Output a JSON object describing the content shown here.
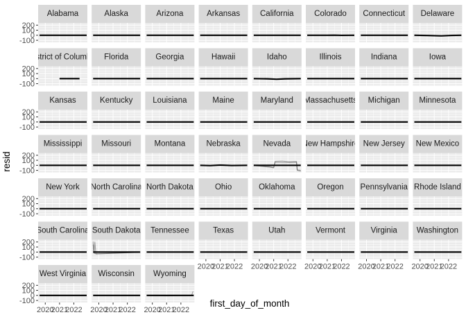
{
  "chart_data": {
    "type": "line",
    "layout": "facet_wrap",
    "ncol": 8,
    "xlabel": "first_day_of_month",
    "ylabel": "resid",
    "x_ticks": [
      "2020",
      "2021",
      "2022"
    ],
    "x_range": [
      2019.5,
      2022.95
    ],
    "y_ticks": [
      200,
      100,
      0,
      -100
    ],
    "y_range": [
      -140,
      245
    ],
    "grid": true,
    "colors": {
      "panel_background": "#ebebeb",
      "strip_background": "#d9d9d9",
      "grid": "#ffffff",
      "line": "#000000"
    },
    "series_note": "many overlapping lines per panel, mostly flat at resid = 0",
    "panels": [
      {
        "name": "Alabama",
        "series": [
          [
            [
              2019.6,
              0
            ],
            [
              2022.9,
              0
            ]
          ]
        ]
      },
      {
        "name": "Alaska",
        "series": [
          [
            [
              2019.6,
              0
            ],
            [
              2022.9,
              0
            ]
          ]
        ]
      },
      {
        "name": "Arizona",
        "series": [
          [
            [
              2019.6,
              0
            ],
            [
              2022.9,
              0
            ]
          ]
        ]
      },
      {
        "name": "Arkansas",
        "series": [
          [
            [
              2019.6,
              0
            ],
            [
              2022.9,
              0
            ]
          ]
        ]
      },
      {
        "name": "California",
        "series": [
          [
            [
              2019.6,
              0
            ],
            [
              2022.9,
              0
            ]
          ]
        ]
      },
      {
        "name": "Colorado",
        "series": [
          [
            [
              2019.6,
              0
            ],
            [
              2021.0,
              0
            ],
            [
              2021.5,
              2
            ],
            [
              2022.0,
              -2
            ],
            [
              2022.9,
              0
            ]
          ]
        ]
      },
      {
        "name": "Connecticut",
        "series": [
          [
            [
              2019.6,
              0
            ],
            [
              2022.9,
              0
            ]
          ]
        ]
      },
      {
        "name": "Delaware",
        "series": [
          [
            [
              2019.6,
              0
            ],
            [
              2020.6,
              -5
            ],
            [
              2021.5,
              -12
            ],
            [
              2022.2,
              -3
            ],
            [
              2022.9,
              0
            ]
          ]
        ]
      },
      {
        "name": "District of Columbia",
        "series": [
          [
            [
              2021.0,
              0
            ],
            [
              2022.4,
              0
            ]
          ]
        ]
      },
      {
        "name": "Florida",
        "series": [
          [
            [
              2019.6,
              0
            ],
            [
              2022.9,
              0
            ]
          ]
        ]
      },
      {
        "name": "Georgia",
        "series": [
          [
            [
              2019.6,
              0
            ],
            [
              2022.9,
              0
            ]
          ]
        ]
      },
      {
        "name": "Hawaii",
        "series": [
          [
            [
              2019.6,
              0
            ],
            [
              2022.9,
              0
            ]
          ]
        ]
      },
      {
        "name": "Idaho",
        "series": [
          [
            [
              2019.6,
              0
            ],
            [
              2020.6,
              -4
            ],
            [
              2021.2,
              -12
            ],
            [
              2021.8,
              -4
            ],
            [
              2022.9,
              0
            ]
          ]
        ]
      },
      {
        "name": "Illinois",
        "series": [
          [
            [
              2019.6,
              0
            ],
            [
              2022.9,
              0
            ]
          ]
        ]
      },
      {
        "name": "Indiana",
        "series": [
          [
            [
              2019.6,
              0
            ],
            [
              2022.9,
              0
            ]
          ]
        ]
      },
      {
        "name": "Iowa",
        "series": [
          [
            [
              2019.6,
              0
            ],
            [
              2022.9,
              0
            ]
          ]
        ]
      },
      {
        "name": "Kansas",
        "series": [
          [
            [
              2019.6,
              0
            ],
            [
              2022.9,
              0
            ]
          ]
        ]
      },
      {
        "name": "Kentucky",
        "series": [
          [
            [
              2019.6,
              0
            ],
            [
              2022.9,
              0
            ]
          ]
        ]
      },
      {
        "name": "Louisiana",
        "series": [
          [
            [
              2019.6,
              0
            ],
            [
              2022.9,
              0
            ]
          ]
        ]
      },
      {
        "name": "Maine",
        "series": [
          [
            [
              2019.6,
              0
            ],
            [
              2022.9,
              0
            ]
          ]
        ]
      },
      {
        "name": "Maryland",
        "series": [
          [
            [
              2019.6,
              0
            ],
            [
              2022.9,
              0
            ]
          ]
        ]
      },
      {
        "name": "Massachusetts",
        "series": [
          [
            [
              2019.6,
              0
            ],
            [
              2022.9,
              0
            ]
          ]
        ]
      },
      {
        "name": "Michigan",
        "series": [
          [
            [
              2019.6,
              0
            ],
            [
              2022.9,
              0
            ]
          ]
        ]
      },
      {
        "name": "Minnesota",
        "series": [
          [
            [
              2019.6,
              0
            ],
            [
              2022.9,
              0
            ]
          ]
        ]
      },
      {
        "name": "Mississippi",
        "series": [
          [
            [
              2019.6,
              0
            ],
            [
              2022.9,
              0
            ]
          ]
        ]
      },
      {
        "name": "Missouri",
        "series": [
          [
            [
              2019.6,
              0
            ],
            [
              2022.9,
              0
            ]
          ]
        ]
      },
      {
        "name": "Montana",
        "series": [
          [
            [
              2019.6,
              0
            ],
            [
              2022.9,
              0
            ]
          ]
        ]
      },
      {
        "name": "Nebraska",
        "series": [
          [
            [
              2019.6,
              0
            ],
            [
              2020.3,
              -5
            ],
            [
              2021.0,
              5
            ],
            [
              2021.8,
              -3
            ],
            [
              2022.9,
              0
            ]
          ]
        ]
      },
      {
        "name": "Nevada",
        "series": [
          [
            [
              2019.6,
              0
            ],
            [
              2022.9,
              0
            ]
          ],
          [
            [
              2019.6,
              -5
            ],
            [
              2020.7,
              -35
            ],
            [
              2021.0,
              -50
            ],
            [
              2021.1,
              80
            ],
            [
              2021.6,
              85
            ],
            [
              2022.1,
              70
            ],
            [
              2022.6,
              75
            ],
            [
              2022.65,
              -100
            ],
            [
              2022.9,
              -115
            ]
          ],
          [
            [
              2019.6,
              0
            ],
            [
              2020.7,
              -25
            ],
            [
              2021.0,
              -40
            ],
            [
              2021.1,
              60
            ],
            [
              2022.1,
              55
            ],
            [
              2022.6,
              60
            ],
            [
              2022.65,
              -90
            ],
            [
              2022.9,
              -100
            ]
          ]
        ]
      },
      {
        "name": "New Hampshire",
        "series": [
          [
            [
              2019.6,
              0
            ],
            [
              2022.9,
              0
            ]
          ]
        ]
      },
      {
        "name": "New Jersey",
        "series": [
          [
            [
              2019.6,
              0
            ],
            [
              2022.9,
              0
            ]
          ]
        ]
      },
      {
        "name": "New Mexico",
        "series": [
          [
            [
              2019.6,
              0
            ],
            [
              2022.9,
              0
            ]
          ]
        ]
      },
      {
        "name": "New York",
        "series": [
          [
            [
              2019.6,
              0
            ],
            [
              2022.9,
              0
            ]
          ]
        ]
      },
      {
        "name": "North Carolina",
        "series": [
          [
            [
              2019.6,
              0
            ],
            [
              2022.9,
              0
            ]
          ]
        ]
      },
      {
        "name": "North Dakota",
        "series": [
          [
            [
              2019.6,
              0
            ],
            [
              2022.9,
              0
            ]
          ]
        ]
      },
      {
        "name": "Ohio",
        "series": [
          [
            [
              2019.6,
              0
            ],
            [
              2022.9,
              0
            ]
          ]
        ]
      },
      {
        "name": "Oklahoma",
        "series": [
          [
            [
              2019.6,
              0
            ],
            [
              2022.9,
              0
            ]
          ]
        ]
      },
      {
        "name": "Oregon",
        "series": [
          [
            [
              2019.6,
              0
            ],
            [
              2022.9,
              0
            ]
          ]
        ]
      },
      {
        "name": "Pennsylvania",
        "series": [
          [
            [
              2019.6,
              0
            ],
            [
              2022.9,
              0
            ]
          ]
        ]
      },
      {
        "name": "Rhode Island",
        "series": [
          [
            [
              2019.6,
              0
            ],
            [
              2022.9,
              0
            ]
          ]
        ]
      },
      {
        "name": "South Carolina",
        "series": [
          [
            [
              2019.6,
              0
            ],
            [
              2022.9,
              0
            ]
          ]
        ]
      },
      {
        "name": "South Dakota",
        "series": [
          [
            [
              2019.6,
              0
            ],
            [
              2022.9,
              0
            ]
          ],
          [
            [
              2019.6,
              210
            ],
            [
              2019.65,
              -20
            ],
            [
              2019.72,
              200
            ],
            [
              2019.8,
              -40
            ],
            [
              2020.6,
              -30
            ],
            [
              2021.4,
              -20
            ],
            [
              2022.3,
              -10
            ],
            [
              2022.9,
              -8
            ]
          ],
          [
            [
              2019.6,
              150
            ],
            [
              2019.7,
              -30
            ],
            [
              2020.5,
              -25
            ],
            [
              2022.9,
              -5
            ]
          ]
        ]
      },
      {
        "name": "Tennessee",
        "series": [
          [
            [
              2019.6,
              0
            ],
            [
              2022.9,
              0
            ]
          ]
        ]
      },
      {
        "name": "Texas",
        "series": [
          [
            [
              2019.6,
              0
            ],
            [
              2022.9,
              0
            ]
          ]
        ]
      },
      {
        "name": "Utah",
        "series": [
          [
            [
              2019.6,
              0
            ],
            [
              2022.9,
              0
            ]
          ]
        ]
      },
      {
        "name": "Vermont",
        "series": [
          [
            [
              2019.6,
              0
            ],
            [
              2022.9,
              0
            ]
          ]
        ]
      },
      {
        "name": "Virginia",
        "series": [
          [
            [
              2019.6,
              0
            ],
            [
              2022.9,
              0
            ]
          ]
        ]
      },
      {
        "name": "Washington",
        "series": [
          [
            [
              2019.6,
              0
            ],
            [
              2022.9,
              0
            ]
          ]
        ]
      },
      {
        "name": "West Virginia",
        "series": [
          [
            [
              2019.6,
              0
            ],
            [
              2022.9,
              0
            ]
          ]
        ]
      },
      {
        "name": "Wisconsin",
        "series": [
          [
            [
              2019.6,
              0
            ],
            [
              2022.9,
              0
            ]
          ]
        ]
      },
      {
        "name": "Wyoming",
        "series": [
          [
            [
              2019.6,
              0
            ],
            [
              2022.9,
              0
            ]
          ],
          [
            [
              2019.6,
              0
            ],
            [
              2021.0,
              -10
            ],
            [
              2022.0,
              -3
            ],
            [
              2022.75,
              0
            ],
            [
              2022.85,
              80
            ]
          ]
        ]
      }
    ]
  }
}
